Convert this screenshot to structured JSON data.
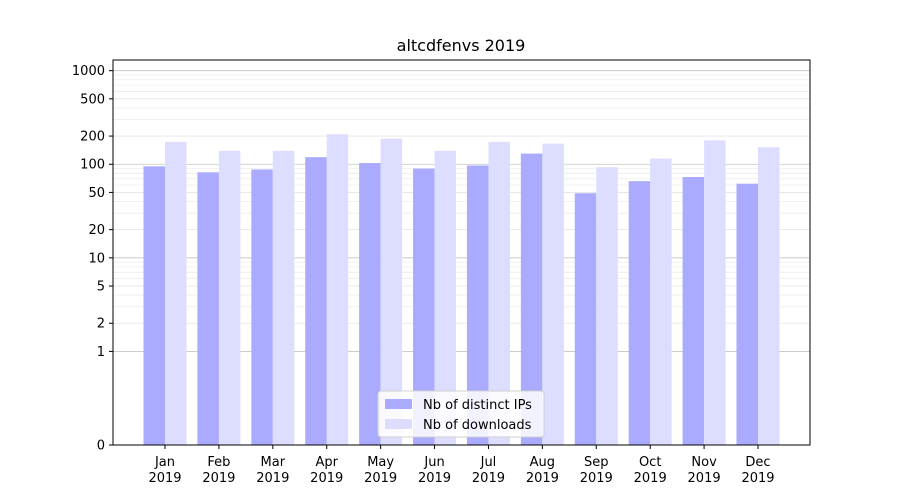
{
  "chart_data": {
    "type": "bar",
    "title": "altcdfenvs 2019",
    "xlabel": "",
    "ylabel": "",
    "yscale": "symlog",
    "ylim": [
      0,
      1300
    ],
    "yticks": [
      0,
      1,
      2,
      5,
      10,
      20,
      50,
      100,
      200,
      500,
      1000
    ],
    "grid": true,
    "legend_position": "bottom-center",
    "categories": [
      "Jan\n2019",
      "Feb\n2019",
      "Mar\n2019",
      "Apr\n2019",
      "May\n2019",
      "Jun\n2019",
      "Jul\n2019",
      "Aug\n2019",
      "Sep\n2019",
      "Oct\n2019",
      "Nov\n2019",
      "Dec\n2019"
    ],
    "series": [
      {
        "name": "Nb of distinct IPs",
        "color": "#aaaaff",
        "values": [
          95,
          82,
          88,
          119,
          103,
          90,
          97,
          130,
          49,
          66,
          73,
          62
        ]
      },
      {
        "name": "Nb of downloads",
        "color": "#ddddff",
        "values": [
          173,
          139,
          139,
          209,
          188,
          139,
          173,
          166,
          93,
          115,
          180,
          152
        ]
      }
    ]
  }
}
